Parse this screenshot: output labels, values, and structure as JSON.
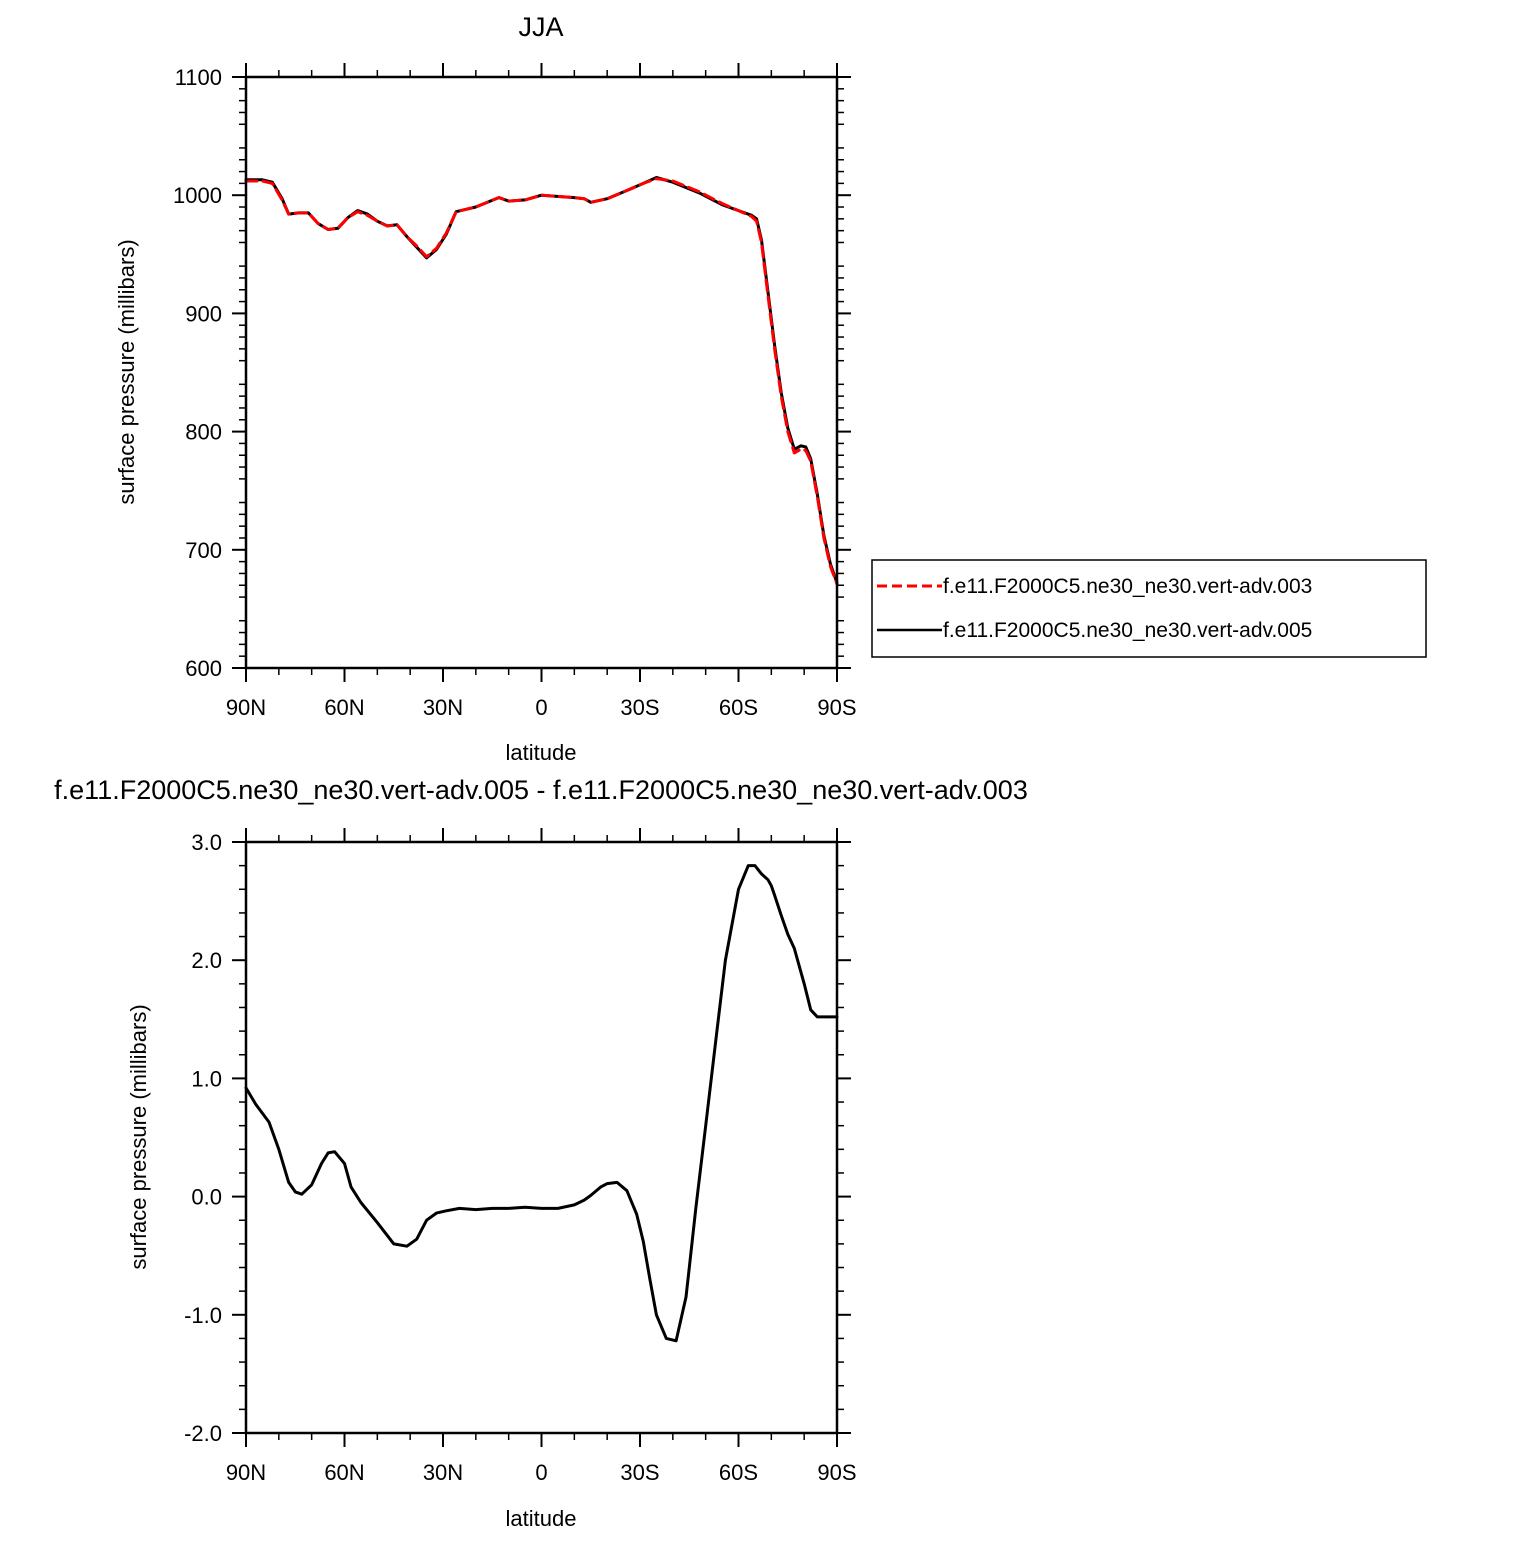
{
  "chart_data": [
    {
      "type": "line",
      "title": "JJA",
      "xlabel": "latitude",
      "ylabel": "surface pressure (millibars)",
      "xlim": [
        90,
        -90
      ],
      "ylim": [
        600,
        1100
      ],
      "x_ticks": [
        {
          "value": 90,
          "label": "90N"
        },
        {
          "value": 60,
          "label": "60N"
        },
        {
          "value": 30,
          "label": "30N"
        },
        {
          "value": 0,
          "label": "0"
        },
        {
          "value": -30,
          "label": "30S"
        },
        {
          "value": -60,
          "label": "60S"
        },
        {
          "value": -90,
          "label": "90S"
        }
      ],
      "y_ticks": [
        {
          "value": 1100,
          "label": "1100"
        },
        {
          "value": 1000,
          "label": "1000"
        },
        {
          "value": 900,
          "label": "900"
        },
        {
          "value": 800,
          "label": "800"
        },
        {
          "value": 700,
          "label": "700"
        },
        {
          "value": 600,
          "label": "600"
        }
      ],
      "legend": "right",
      "grid": false,
      "x": [
        90,
        85,
        82,
        79,
        77,
        74,
        71,
        68,
        65,
        62,
        59,
        56,
        53,
        50,
        47,
        44,
        41,
        38,
        35,
        32,
        29,
        26,
        20,
        13,
        10,
        5,
        0,
        -10,
        -13,
        -15,
        -20,
        -26,
        -31,
        -35,
        -40,
        -48,
        -55,
        -60,
        -64,
        -65.5,
        -67,
        -69,
        -71,
        -73,
        -75,
        -77,
        -79,
        -80.5,
        -82,
        -84,
        -86,
        -88,
        -90
      ],
      "series": [
        {
          "name": "f.e11.F2000C5.ne30_ne30.vert-adv.003",
          "color": "#ff0000",
          "dash": "dashed",
          "values": [
            1012,
            1012,
            1010,
            996,
            984,
            985,
            985,
            976,
            971,
            972,
            981,
            986,
            983,
            978,
            974,
            975,
            965,
            957,
            948,
            955,
            968,
            986,
            990,
            998,
            995,
            996,
            1000,
            998,
            997,
            994,
            997,
            1004,
            1010,
            1014,
            1012,
            1003,
            993,
            987,
            982,
            978,
            960,
            915,
            870,
            830,
            800,
            782,
            785,
            784,
            775,
            745,
            710,
            686,
            671
          ]
        },
        {
          "name": "f.e11.F2000C5.ne30_ne30.vert-adv.005",
          "color": "#000000",
          "dash": "solid",
          "values": [
            1013,
            1013,
            1011,
            997,
            984,
            985,
            985,
            976,
            971,
            972,
            981,
            987,
            984,
            978,
            974,
            975,
            965,
            956,
            947,
            954,
            967,
            986,
            990,
            998,
            995,
            996,
            1000,
            998,
            997,
            994,
            997,
            1004,
            1010,
            1015,
            1011,
            1002,
            992,
            987,
            983,
            980,
            962,
            918,
            873,
            833,
            803,
            785,
            788,
            787,
            777,
            747,
            712,
            688,
            672
          ]
        }
      ]
    },
    {
      "type": "line",
      "title": "f.e11.F2000C5.ne30_ne30.vert-adv.005 - f.e11.F2000C5.ne30_ne30.vert-adv.003",
      "xlabel": "latitude",
      "ylabel": "surface pressure (millibars)",
      "xlim": [
        90,
        -90
      ],
      "ylim": [
        -2.0,
        3.0
      ],
      "x_ticks": [
        {
          "value": 90,
          "label": "90N"
        },
        {
          "value": 60,
          "label": "60N"
        },
        {
          "value": 30,
          "label": "30N"
        },
        {
          "value": 0,
          "label": "0"
        },
        {
          "value": -30,
          "label": "30S"
        },
        {
          "value": -60,
          "label": "60S"
        },
        {
          "value": -90,
          "label": "90S"
        }
      ],
      "y_ticks": [
        {
          "value": 3.0,
          "label": "3.0"
        },
        {
          "value": 2.0,
          "label": "2.0"
        },
        {
          "value": 1.0,
          "label": "1.0"
        },
        {
          "value": 0.0,
          "label": "0.0"
        },
        {
          "value": -1.0,
          "label": "-1.0"
        },
        {
          "value": -2.0,
          "label": "-2.0"
        }
      ],
      "grid": false,
      "x": [
        90,
        87,
        83,
        80,
        77,
        75,
        73,
        70,
        67,
        65,
        63,
        60,
        58,
        55,
        50,
        45,
        41,
        38,
        35,
        32,
        29,
        25,
        20,
        15,
        10,
        5,
        0,
        -5,
        -10,
        -13,
        -15,
        -18,
        -20,
        -23,
        -26,
        -29,
        -31,
        -33,
        -35,
        -38,
        -41,
        -44,
        -45,
        -47,
        -50,
        -53,
        -56,
        -60,
        -63,
        -65,
        -67,
        -69,
        -70,
        -71,
        -73,
        -75,
        -77,
        -80,
        -82,
        -84,
        -86,
        -88,
        -90
      ],
      "series": [
        {
          "name": "",
          "color": "#000000",
          "dash": "solid",
          "values": [
            0.92,
            0.78,
            0.63,
            0.4,
            0.12,
            0.04,
            0.02,
            0.1,
            0.28,
            0.37,
            0.38,
            0.28,
            0.08,
            -0.05,
            -0.22,
            -0.4,
            -0.42,
            -0.36,
            -0.2,
            -0.14,
            -0.12,
            -0.1,
            -0.11,
            -0.1,
            -0.1,
            -0.09,
            -0.1,
            -0.1,
            -0.07,
            -0.03,
            0.01,
            0.08,
            0.11,
            0.12,
            0.05,
            -0.15,
            -0.38,
            -0.7,
            -1.0,
            -1.2,
            -1.22,
            -0.85,
            -0.6,
            -0.1,
            0.6,
            1.3,
            2.0,
            2.6,
            2.8,
            2.8,
            2.73,
            2.68,
            2.63,
            2.55,
            2.38,
            2.22,
            2.1,
            1.8,
            1.58,
            1.52,
            1.52,
            1.52,
            1.52
          ]
        }
      ]
    }
  ]
}
